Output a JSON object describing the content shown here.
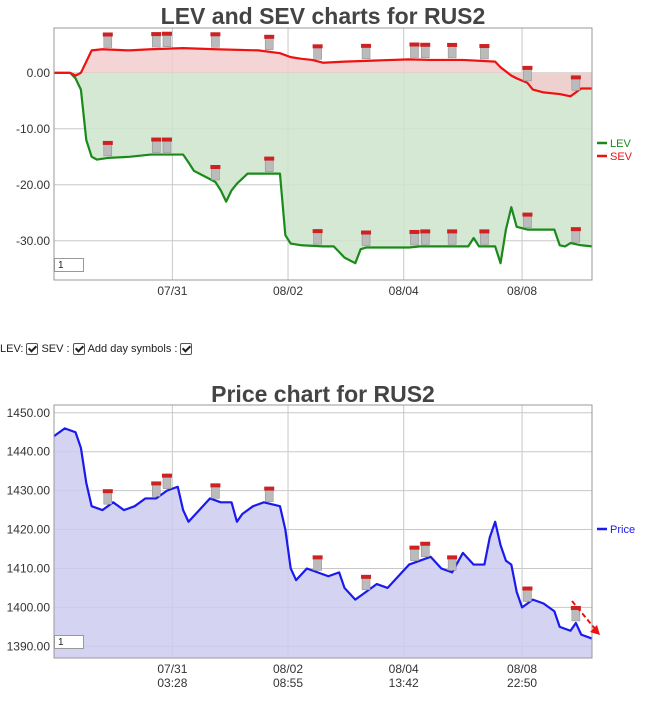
{
  "controls": {
    "lev_label": "LEV:",
    "sev_label": "SEV :",
    "day_symbols_label": "Add day symbols :",
    "lev_checked": true,
    "sev_checked": true,
    "day_symbols_checked": true
  },
  "chart_data": [
    {
      "type": "area",
      "title": "LEV and SEV charts for RUS2",
      "ylim": [
        -37,
        8
      ],
      "x_ticks": [
        {
          "line1": "07/31",
          "line2": "03:28"
        },
        {
          "line1": "08/02",
          "line2": "08:55"
        },
        {
          "line1": "08/04",
          "line2": "13:42"
        },
        {
          "line1": "08/08",
          "line2": "22:50"
        }
      ],
      "y_ticks": [
        "0.00",
        "-10.00",
        "-20.00",
        "-30.00"
      ],
      "y_tick_values": [
        0,
        -10,
        -20,
        -30
      ],
      "legend": [
        {
          "name": "LEV",
          "color": "#1a8a1a"
        },
        {
          "name": "SEV",
          "color": "#ee1111"
        }
      ],
      "legend_position": "right",
      "zoom_value": "1",
      "series": [
        {
          "name": "LEV",
          "color": "#1a8a1a",
          "fill": "#cce4cc",
          "points": [
            [
              0,
              0
            ],
            [
              3,
              0
            ],
            [
              4,
              -1
            ],
            [
              5,
              -3
            ],
            [
              6,
              -12
            ],
            [
              7,
              -15
            ],
            [
              8,
              -15.5
            ],
            [
              10,
              -15.2
            ],
            [
              14,
              -15
            ],
            [
              18,
              -14.6
            ],
            [
              21,
              -14.6
            ],
            [
              24,
              -14.6
            ],
            [
              25,
              -16
            ],
            [
              26,
              -17.5
            ],
            [
              28,
              -18.5
            ],
            [
              30,
              -19.5
            ],
            [
              31,
              -21
            ],
            [
              32,
              -23
            ],
            [
              33,
              -21
            ],
            [
              34,
              -19.8
            ],
            [
              36,
              -18
            ],
            [
              42,
              -18
            ],
            [
              43,
              -29
            ],
            [
              44,
              -30.5
            ],
            [
              46,
              -30.8
            ],
            [
              50,
              -31
            ],
            [
              52,
              -31
            ],
            [
              53,
              -32
            ],
            [
              54,
              -33
            ],
            [
              56,
              -34
            ],
            [
              57,
              -31.5
            ],
            [
              58,
              -31.2
            ],
            [
              66,
              -31.2
            ],
            [
              68,
              -31
            ],
            [
              74,
              -31
            ],
            [
              77,
              -31
            ],
            [
              78,
              -29.5
            ],
            [
              79,
              -31
            ],
            [
              82,
              -31
            ],
            [
              83,
              -34
            ],
            [
              84,
              -28
            ],
            [
              85,
              -24
            ],
            [
              86,
              -27.5
            ],
            [
              88,
              -28
            ],
            [
              90,
              -28
            ],
            [
              93,
              -28
            ],
            [
              94,
              -30.8
            ],
            [
              95,
              -31
            ],
            [
              96,
              -30.4
            ],
            [
              98,
              -30.8
            ],
            [
              100,
              -31
            ]
          ]
        },
        {
          "name": "SEV",
          "color": "#ee1111",
          "fill": "#f2cccc",
          "points": [
            [
              0,
              0
            ],
            [
              3,
              0
            ],
            [
              4,
              -0.5
            ],
            [
              5,
              0
            ],
            [
              6,
              2
            ],
            [
              7,
              4
            ],
            [
              9,
              4.2
            ],
            [
              14,
              4
            ],
            [
              18,
              4.2
            ],
            [
              24,
              4.4
            ],
            [
              30,
              4.2
            ],
            [
              38,
              4
            ],
            [
              42,
              3.5
            ],
            [
              44,
              2.8
            ],
            [
              46,
              2.5
            ],
            [
              48,
              2.3
            ],
            [
              50,
              1.8
            ],
            [
              54,
              2
            ],
            [
              60,
              2.2
            ],
            [
              66,
              2.4
            ],
            [
              70,
              2.3
            ],
            [
              76,
              2.3
            ],
            [
              82,
              2
            ],
            [
              83,
              1
            ],
            [
              85,
              -0.5
            ],
            [
              86,
              -1
            ],
            [
              88,
              -1.8
            ],
            [
              89,
              -3
            ],
            [
              91,
              -3.5
            ],
            [
              94,
              -3.8
            ],
            [
              96,
              -4.2
            ],
            [
              97,
              -3.5
            ],
            [
              98,
              -2.8
            ],
            [
              100,
              -2.8
            ]
          ]
        }
      ],
      "day_symbol_x": [
        10,
        19,
        21,
        30,
        40,
        49,
        58,
        67,
        69,
        74,
        80,
        10,
        19,
        21,
        30,
        40,
        49,
        58,
        67,
        69,
        74,
        80,
        88,
        97,
        88,
        97
      ]
    },
    {
      "type": "area",
      "title": "Price chart for RUS2",
      "ylim": [
        1387,
        1452
      ],
      "x_ticks": [
        {
          "line1": "07/31",
          "line2": "03:28"
        },
        {
          "line1": "08/02",
          "line2": "08:55"
        },
        {
          "line1": "08/04",
          "line2": "13:42"
        },
        {
          "line1": "08/08",
          "line2": "22:50"
        }
      ],
      "y_ticks": [
        "1450.00",
        "1440.00",
        "1430.00",
        "1420.00",
        "1410.00",
        "1400.00",
        "1390.00"
      ],
      "y_tick_values": [
        1450,
        1440,
        1430,
        1420,
        1410,
        1400,
        1390
      ],
      "legend": [
        {
          "name": "Price",
          "color": "#1a1aee"
        }
      ],
      "legend_position": "right",
      "zoom_value": "1",
      "series": [
        {
          "name": "Price",
          "color": "#1a1aee",
          "fill": "#ccccf0",
          "points": [
            [
              0,
              1444
            ],
            [
              2,
              1446
            ],
            [
              4,
              1445
            ],
            [
              5,
              1441
            ],
            [
              6,
              1432
            ],
            [
              7,
              1426
            ],
            [
              9,
              1425
            ],
            [
              11,
              1427
            ],
            [
              13,
              1425
            ],
            [
              15,
              1426
            ],
            [
              17,
              1428
            ],
            [
              19,
              1428
            ],
            [
              21,
              1430
            ],
            [
              23,
              1431
            ],
            [
              24,
              1425
            ],
            [
              25,
              1422
            ],
            [
              27,
              1425
            ],
            [
              29,
              1428
            ],
            [
              31,
              1427
            ],
            [
              33,
              1427
            ],
            [
              34,
              1422
            ],
            [
              35,
              1424
            ],
            [
              37,
              1426
            ],
            [
              39,
              1427
            ],
            [
              42,
              1426
            ],
            [
              43,
              1420
            ],
            [
              44,
              1410
            ],
            [
              45,
              1407
            ],
            [
              47,
              1410
            ],
            [
              49,
              1409
            ],
            [
              51,
              1408
            ],
            [
              53,
              1409
            ],
            [
              54,
              1405
            ],
            [
              56,
              1402
            ],
            [
              58,
              1404
            ],
            [
              60,
              1406
            ],
            [
              62,
              1405
            ],
            [
              64,
              1408
            ],
            [
              66,
              1411
            ],
            [
              68,
              1412
            ],
            [
              70,
              1413
            ],
            [
              72,
              1410
            ],
            [
              74,
              1409
            ],
            [
              76,
              1414
            ],
            [
              78,
              1411
            ],
            [
              80,
              1411
            ],
            [
              81,
              1418
            ],
            [
              82,
              1422
            ],
            [
              83,
              1416
            ],
            [
              84,
              1412
            ],
            [
              85,
              1411
            ],
            [
              86,
              1404
            ],
            [
              87,
              1400
            ],
            [
              89,
              1402
            ],
            [
              91,
              1401
            ],
            [
              93,
              1399
            ],
            [
              94,
              1395
            ],
            [
              96,
              1394
            ],
            [
              97,
              1396
            ],
            [
              98,
              1393
            ],
            [
              100,
              1392
            ]
          ]
        }
      ],
      "day_symbol_x": [
        10,
        19,
        21,
        30,
        40,
        49,
        58,
        67,
        69,
        74,
        88,
        97
      ]
    }
  ]
}
